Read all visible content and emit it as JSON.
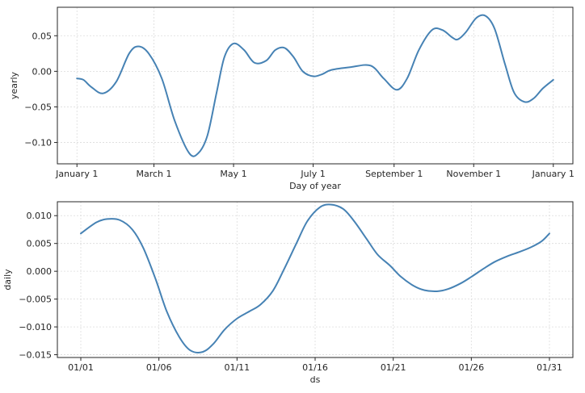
{
  "chart_data": [
    {
      "type": "line",
      "xlabel": "Day of year",
      "ylabel": "yearly",
      "xlim": [
        -15,
        380
      ],
      "ylim": [
        -0.13,
        0.09
      ],
      "grid": true,
      "line_color": "#4682b4",
      "x_ticks": [
        {
          "value": 0,
          "label": "January 1"
        },
        {
          "value": 59,
          "label": "March 1"
        },
        {
          "value": 120,
          "label": "May 1"
        },
        {
          "value": 181,
          "label": "July 1"
        },
        {
          "value": 243,
          "label": "September 1"
        },
        {
          "value": 304,
          "label": "November 1"
        },
        {
          "value": 365,
          "label": "January 1"
        }
      ],
      "y_ticks": [
        {
          "value": 0.05,
          "label": "0.05"
        },
        {
          "value": 0.0,
          "label": "0.00"
        },
        {
          "value": -0.05,
          "label": "−0.05"
        },
        {
          "value": -0.1,
          "label": "−0.10"
        }
      ],
      "series": [
        {
          "x": [
            0,
            5,
            11,
            20,
            30,
            40,
            47,
            55,
            65,
            75,
            86,
            93,
            100,
            107,
            113,
            120,
            128,
            136,
            145,
            152,
            159,
            166,
            173,
            181,
            188,
            195,
            210,
            225,
            235,
            245,
            253,
            262,
            272,
            280,
            288,
            292,
            298,
            306,
            313,
            320,
            328,
            335,
            343,
            350,
            357,
            365
          ],
          "y": [
            -0.01,
            -0.012,
            -0.022,
            -0.031,
            -0.015,
            0.025,
            0.035,
            0.025,
            -0.01,
            -0.07,
            -0.115,
            -0.115,
            -0.09,
            -0.03,
            0.02,
            0.039,
            0.03,
            0.012,
            0.015,
            0.03,
            0.033,
            0.02,
            0.0,
            -0.007,
            -0.004,
            0.002,
            0.006,
            0.008,
            -0.01,
            -0.026,
            -0.01,
            0.03,
            0.058,
            0.058,
            0.047,
            0.045,
            0.055,
            0.075,
            0.078,
            0.06,
            0.01,
            -0.03,
            -0.043,
            -0.038,
            -0.024,
            -0.012
          ]
        }
      ]
    },
    {
      "type": "line",
      "xlabel": "ds",
      "ylabel": "daily",
      "xlim": [
        -1.5,
        31.5
      ],
      "ylim": [
        -0.0155,
        0.0125
      ],
      "grid": true,
      "line_color": "#4682b4",
      "x_ticks": [
        {
          "value": 0,
          "label": "01/01"
        },
        {
          "value": 5,
          "label": "01/06"
        },
        {
          "value": 10,
          "label": "01/11"
        },
        {
          "value": 15,
          "label": "01/16"
        },
        {
          "value": 20,
          "label": "01/21"
        },
        {
          "value": 25,
          "label": "01/26"
        },
        {
          "value": 30,
          "label": "01/31"
        }
      ],
      "y_ticks": [
        {
          "value": 0.01,
          "label": "0.010"
        },
        {
          "value": 0.005,
          "label": "0.005"
        },
        {
          "value": 0.0,
          "label": "0.000"
        },
        {
          "value": -0.005,
          "label": "−0.005"
        },
        {
          "value": -0.01,
          "label": "−0.010"
        },
        {
          "value": -0.015,
          "label": "−0.015"
        }
      ],
      "series": [
        {
          "x": [
            0,
            1,
            1.7,
            2.5,
            3.3,
            4,
            4.8,
            5.5,
            6.3,
            7,
            7.8,
            8.5,
            9.2,
            10,
            10.8,
            11.5,
            12.3,
            13,
            13.8,
            14.5,
            15.3,
            16,
            16.8,
            17.5,
            18.3,
            19,
            19.8,
            20.5,
            21.3,
            22,
            22.8,
            23.5,
            24.3,
            25,
            25.8,
            26.5,
            27.3,
            28,
            28.8,
            29.5,
            30
          ],
          "y": [
            0.0068,
            0.0088,
            0.0094,
            0.0092,
            0.0075,
            0.0042,
            -0.0015,
            -0.0072,
            -0.0118,
            -0.0142,
            -0.0145,
            -0.013,
            -0.0105,
            -0.0085,
            -0.0072,
            -0.006,
            -0.0035,
            0.0003,
            0.005,
            0.009,
            0.0115,
            0.012,
            0.0112,
            0.009,
            0.0058,
            0.003,
            0.001,
            -0.001,
            -0.0026,
            -0.0034,
            -0.0036,
            -0.0032,
            -0.0022,
            -0.001,
            0.0005,
            0.0017,
            0.0027,
            0.0034,
            0.0043,
            0.0054,
            0.0068
          ]
        }
      ]
    }
  ]
}
